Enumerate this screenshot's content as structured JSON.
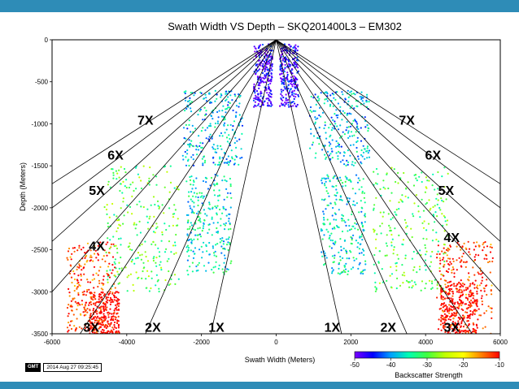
{
  "colors": {
    "frame": "#2e8cb7"
  },
  "footer": {
    "logo": "GMT",
    "timestamp": "2014 Aug 27 09:25:45"
  },
  "chart_data": {
    "type": "scatter",
    "title": "Swath Width VS Depth – SKQ201400L3 – EM302",
    "xlabel": "Swath Width (Meters)",
    "ylabel": "Depth (Meters)",
    "xlim": [
      -6000,
      6000
    ],
    "ylim": [
      -3500,
      0
    ],
    "x_ticks": [
      -6000,
      -4000,
      -2000,
      0,
      2000,
      4000,
      6000
    ],
    "y_ticks": [
      0,
      -500,
      -1000,
      -1500,
      -2000,
      -2500,
      -3000,
      -3500
    ],
    "grid": false,
    "swath_coverage_lines": [
      {
        "label": "1X",
        "ratio": 1
      },
      {
        "label": "2X",
        "ratio": 2
      },
      {
        "label": "3X",
        "ratio": 3
      },
      {
        "label": "4X",
        "ratio": 4
      },
      {
        "label": "5X",
        "ratio": 5
      },
      {
        "label": "6X",
        "ratio": 6
      },
      {
        "label": "7X",
        "ratio": 7
      }
    ],
    "point_clusters": [
      {
        "x_range": [
          -600,
          -100
        ],
        "y_range": [
          -800,
          -50
        ],
        "backscatter": -48
      },
      {
        "x_range": [
          100,
          600
        ],
        "y_range": [
          -800,
          -50
        ],
        "backscatter": -47
      },
      {
        "x_range": [
          -2500,
          -900
        ],
        "y_range": [
          -1500,
          -600
        ],
        "backscatter": -38
      },
      {
        "x_range": [
          900,
          2500
        ],
        "y_range": [
          -1500,
          -600
        ],
        "backscatter": -38
      },
      {
        "x_range": [
          -4600,
          -2600
        ],
        "y_range": [
          -3000,
          -1500
        ],
        "backscatter": -30
      },
      {
        "x_range": [
          2600,
          4600
        ],
        "y_range": [
          -3000,
          -1500
        ],
        "backscatter": -30
      },
      {
        "x_range": [
          -2400,
          -1200
        ],
        "y_range": [
          -2800,
          -1600
        ],
        "backscatter": -36
      },
      {
        "x_range": [
          1200,
          2400
        ],
        "y_range": [
          -2800,
          -1600
        ],
        "backscatter": -36
      },
      {
        "x_range": [
          -5600,
          -4300
        ],
        "y_range": [
          -3500,
          -2400
        ],
        "backscatter": -12
      },
      {
        "x_range": [
          4300,
          5800
        ],
        "y_range": [
          -3500,
          -2400
        ],
        "backscatter": -12
      },
      {
        "x_range": [
          -5000,
          -4200
        ],
        "y_range": [
          -3500,
          -3000
        ],
        "backscatter": -8
      },
      {
        "x_range": [
          4400,
          5400
        ],
        "y_range": [
          -3500,
          -2900
        ],
        "backscatter": -8
      }
    ],
    "colorbar": {
      "label": "Backscatter Strength",
      "range": [
        -50,
        -10
      ],
      "ticks": [
        -50,
        -40,
        -30,
        -20,
        -10
      ],
      "colors": [
        "#7a00ff",
        "#0000ff",
        "#00a0ff",
        "#00ffb0",
        "#40ff40",
        "#c0ff00",
        "#ffff00",
        "#ff8000",
        "#ff0000"
      ]
    }
  }
}
